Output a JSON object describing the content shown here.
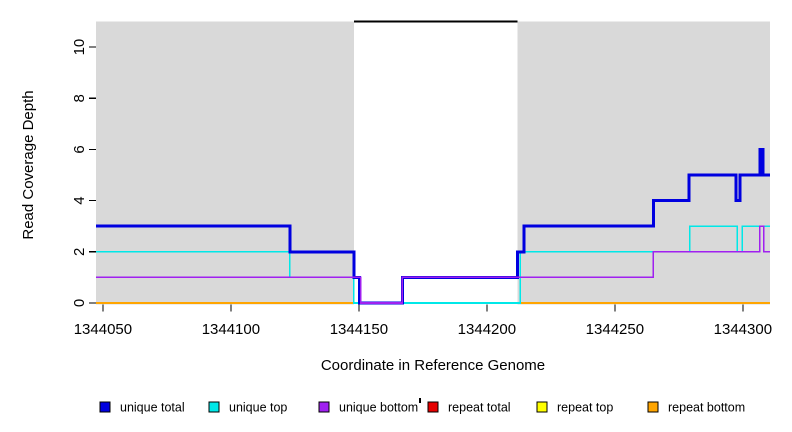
{
  "figure": {
    "x_axis_title": "Coordinate in Reference Genome",
    "y_axis_title": "Read Coverage Depth"
  },
  "chart_data": {
    "type": "line",
    "subtype": "step-coverage-plot",
    "title": "",
    "xlabel": "Coordinate in Reference Genome",
    "ylabel": "Read Coverage Depth",
    "xlim": [
      1344047.3,
      1344310.6
    ],
    "ylim": [
      0,
      11
    ],
    "xticks": [
      1344050,
      1344100,
      1344150,
      1344200,
      1344250,
      1344300
    ],
    "yticks": [
      0,
      2,
      4,
      6,
      8,
      10
    ],
    "grid": false,
    "panel_bg": "#d9d9d9",
    "background": "#ffffff",
    "legend_position": "bottom",
    "highlight_region": {
      "x_start": 1344148,
      "x_end": 1344212,
      "fill": "#ffffff",
      "cap_value": 11,
      "cap_color": "#000000"
    },
    "stray_mark": "'",
    "series": [
      {
        "name": "repeat total",
        "color": "#e60000",
        "line_width": 1.6,
        "steps": [
          [
            1344047.3,
            0
          ]
        ],
        "x_end": 1344310.6
      },
      {
        "name": "repeat top",
        "color": "#ffff00",
        "line_width": 1.6,
        "steps": [
          [
            1344047.3,
            0
          ]
        ],
        "x_end": 1344310.6
      },
      {
        "name": "repeat bottom",
        "color": "#ffa500",
        "line_width": 2,
        "steps": [
          [
            1344047.3,
            0
          ]
        ],
        "x_end": 1344310.6
      },
      {
        "name": "unique top",
        "color": "#00e8e8",
        "line_width": 1.6,
        "steps": [
          [
            1344047.3,
            2
          ],
          [
            1344123,
            1
          ],
          [
            1344148,
            0
          ],
          [
            1344213,
            2
          ],
          [
            1344279.3,
            3
          ],
          [
            1344297.8,
            2
          ],
          [
            1344299.7,
            3
          ]
        ],
        "x_end": 1344310.6
      },
      {
        "name": "unique total",
        "color": "#0000e0",
        "line_width": 3,
        "steps": [
          [
            1344047.3,
            3
          ],
          [
            1344123,
            2
          ],
          [
            1344148,
            1
          ],
          [
            1344150.2,
            0
          ],
          [
            1344167,
            1
          ],
          [
            1344212,
            2
          ],
          [
            1344214.5,
            3
          ],
          [
            1344265,
            4
          ],
          [
            1344279,
            5
          ],
          [
            1344297.3,
            4
          ],
          [
            1344298.8,
            5
          ],
          [
            1344306.6,
            6
          ],
          [
            1344307.8,
            5
          ]
        ],
        "x_end": 1344310.6
      },
      {
        "name": "unique bottom",
        "color": "#a020f0",
        "line_width": 1.6,
        "steps": [
          [
            1344047.3,
            1
          ],
          [
            1344150.8,
            0
          ],
          [
            1344167,
            1
          ],
          [
            1344265,
            2
          ],
          [
            1344306.6,
            3
          ],
          [
            1344308.2,
            2
          ]
        ],
        "x_end": 1344310.6
      }
    ],
    "legend": [
      {
        "label": "unique total",
        "color": "#0000e0"
      },
      {
        "label": "unique top",
        "color": "#00e8e8"
      },
      {
        "label": "unique bottom",
        "color": "#a020f0"
      },
      {
        "label": "repeat total",
        "color": "#e60000"
      },
      {
        "label": "repeat top",
        "color": "#ffff00"
      },
      {
        "label": "repeat bottom",
        "color": "#ffa500"
      }
    ]
  }
}
